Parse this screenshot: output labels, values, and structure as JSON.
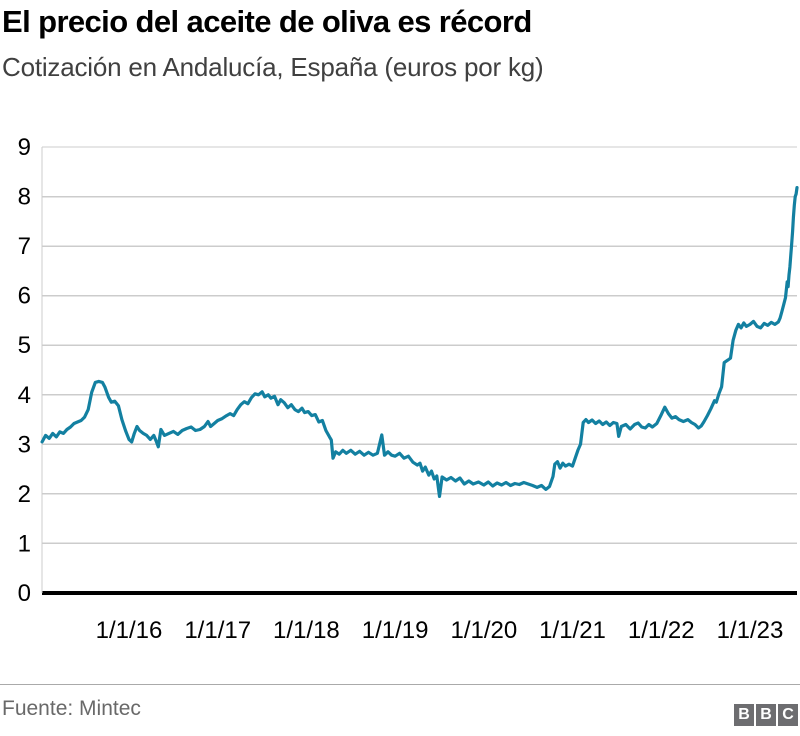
{
  "header": {
    "title": "El precio del aceite de oliva es récord",
    "subtitle": "Cotización en Andalucía, España (euros por kg)"
  },
  "footer": {
    "source": "Fuente: Mintec",
    "logo_letters": [
      "B",
      "B",
      "C"
    ]
  },
  "colors": {
    "line": "#1380A1",
    "grid": "#cccccc",
    "axis": "#000000",
    "tick_text": "#000000",
    "subtitle_text": "#404040",
    "source_text": "#696969",
    "logo_bg": "#6d6d70"
  },
  "chart_data": {
    "type": "line",
    "title": "El precio del aceite de oliva es récord",
    "subtitle": "Cotización en Andalucía, España (euros por kg)",
    "unit": "euros por kg",
    "grid": true,
    "legend_position": "none",
    "y_axis": {
      "min": 0,
      "max": 9,
      "ticks": [
        0,
        1,
        2,
        3,
        4,
        5,
        6,
        7,
        8,
        9
      ]
    },
    "x_axis": {
      "tick_years": [
        2016,
        2017,
        2018,
        2019,
        2020,
        2021,
        2022,
        2023
      ],
      "tick_labels": [
        "1/1/16",
        "1/1/17",
        "1/1/18",
        "1/1/19",
        "1/1/20",
        "1/1/21",
        "1/1/22",
        "1/1/23"
      ],
      "range_years": [
        2015.02,
        2023.53
      ]
    },
    "series": [
      {
        "name": "Precio del aceite de oliva (euros por kg)",
        "color": "#1380A1",
        "points": [
          [
            2015.02,
            3.05
          ],
          [
            2015.06,
            3.18
          ],
          [
            2015.1,
            3.12
          ],
          [
            2015.14,
            3.22
          ],
          [
            2015.18,
            3.15
          ],
          [
            2015.22,
            3.25
          ],
          [
            2015.26,
            3.22
          ],
          [
            2015.3,
            3.3
          ],
          [
            2015.34,
            3.35
          ],
          [
            2015.38,
            3.42
          ],
          [
            2015.42,
            3.45
          ],
          [
            2015.46,
            3.48
          ],
          [
            2015.5,
            3.55
          ],
          [
            2015.54,
            3.7
          ],
          [
            2015.58,
            4.05
          ],
          [
            2015.62,
            4.25
          ],
          [
            2015.66,
            4.27
          ],
          [
            2015.7,
            4.25
          ],
          [
            2015.73,
            4.15
          ],
          [
            2015.77,
            3.95
          ],
          [
            2015.8,
            3.85
          ],
          [
            2015.84,
            3.87
          ],
          [
            2015.88,
            3.78
          ],
          [
            2015.92,
            3.5
          ],
          [
            2015.96,
            3.28
          ],
          [
            2016.0,
            3.1
          ],
          [
            2016.03,
            3.05
          ],
          [
            2016.06,
            3.22
          ],
          [
            2016.09,
            3.36
          ],
          [
            2016.12,
            3.28
          ],
          [
            2016.16,
            3.22
          ],
          [
            2016.2,
            3.18
          ],
          [
            2016.24,
            3.1
          ],
          [
            2016.28,
            3.18
          ],
          [
            2016.31,
            3.05
          ],
          [
            2016.33,
            2.95
          ],
          [
            2016.36,
            3.3
          ],
          [
            2016.4,
            3.18
          ],
          [
            2016.45,
            3.22
          ],
          [
            2016.5,
            3.26
          ],
          [
            2016.55,
            3.2
          ],
          [
            2016.6,
            3.28
          ],
          [
            2016.65,
            3.32
          ],
          [
            2016.7,
            3.35
          ],
          [
            2016.75,
            3.28
          ],
          [
            2016.8,
            3.3
          ],
          [
            2016.85,
            3.36
          ],
          [
            2016.89,
            3.46
          ],
          [
            2016.92,
            3.36
          ],
          [
            2016.96,
            3.42
          ],
          [
            2017.0,
            3.48
          ],
          [
            2017.05,
            3.52
          ],
          [
            2017.1,
            3.58
          ],
          [
            2017.14,
            3.62
          ],
          [
            2017.18,
            3.58
          ],
          [
            2017.22,
            3.7
          ],
          [
            2017.26,
            3.8
          ],
          [
            2017.3,
            3.86
          ],
          [
            2017.34,
            3.82
          ],
          [
            2017.38,
            3.94
          ],
          [
            2017.42,
            4.02
          ],
          [
            2017.46,
            4.0
          ],
          [
            2017.5,
            4.06
          ],
          [
            2017.53,
            3.96
          ],
          [
            2017.57,
            4.0
          ],
          [
            2017.6,
            3.93
          ],
          [
            2017.64,
            3.97
          ],
          [
            2017.68,
            3.8
          ],
          [
            2017.71,
            3.9
          ],
          [
            2017.75,
            3.84
          ],
          [
            2017.79,
            3.74
          ],
          [
            2017.83,
            3.8
          ],
          [
            2017.87,
            3.7
          ],
          [
            2017.91,
            3.66
          ],
          [
            2017.95,
            3.73
          ],
          [
            2017.98,
            3.64
          ],
          [
            2018.02,
            3.66
          ],
          [
            2018.06,
            3.58
          ],
          [
            2018.1,
            3.6
          ],
          [
            2018.14,
            3.45
          ],
          [
            2018.18,
            3.48
          ],
          [
            2018.22,
            3.28
          ],
          [
            2018.26,
            3.15
          ],
          [
            2018.28,
            3.09
          ],
          [
            2018.3,
            2.72
          ],
          [
            2018.33,
            2.85
          ],
          [
            2018.37,
            2.8
          ],
          [
            2018.41,
            2.88
          ],
          [
            2018.45,
            2.82
          ],
          [
            2018.5,
            2.88
          ],
          [
            2018.55,
            2.8
          ],
          [
            2018.6,
            2.86
          ],
          [
            2018.65,
            2.78
          ],
          [
            2018.7,
            2.84
          ],
          [
            2018.75,
            2.78
          ],
          [
            2018.8,
            2.82
          ],
          [
            2018.85,
            3.19
          ],
          [
            2018.88,
            2.78
          ],
          [
            2018.92,
            2.85
          ],
          [
            2018.96,
            2.78
          ],
          [
            2019.0,
            2.76
          ],
          [
            2019.05,
            2.82
          ],
          [
            2019.1,
            2.72
          ],
          [
            2019.15,
            2.76
          ],
          [
            2019.2,
            2.64
          ],
          [
            2019.25,
            2.58
          ],
          [
            2019.28,
            2.62
          ],
          [
            2019.31,
            2.46
          ],
          [
            2019.34,
            2.54
          ],
          [
            2019.38,
            2.38
          ],
          [
            2019.41,
            2.46
          ],
          [
            2019.44,
            2.3
          ],
          [
            2019.47,
            2.36
          ],
          [
            2019.5,
            1.95
          ],
          [
            2019.53,
            2.34
          ],
          [
            2019.58,
            2.28
          ],
          [
            2019.63,
            2.33
          ],
          [
            2019.68,
            2.26
          ],
          [
            2019.73,
            2.32
          ],
          [
            2019.78,
            2.2
          ],
          [
            2019.83,
            2.26
          ],
          [
            2019.88,
            2.2
          ],
          [
            2019.94,
            2.24
          ],
          [
            2020.0,
            2.18
          ],
          [
            2020.05,
            2.24
          ],
          [
            2020.1,
            2.16
          ],
          [
            2020.15,
            2.22
          ],
          [
            2020.2,
            2.18
          ],
          [
            2020.25,
            2.23
          ],
          [
            2020.3,
            2.17
          ],
          [
            2020.35,
            2.21
          ],
          [
            2020.4,
            2.19
          ],
          [
            2020.45,
            2.23
          ],
          [
            2020.5,
            2.2
          ],
          [
            2020.55,
            2.17
          ],
          [
            2020.6,
            2.13
          ],
          [
            2020.65,
            2.17
          ],
          [
            2020.7,
            2.09
          ],
          [
            2020.74,
            2.15
          ],
          [
            2020.78,
            2.35
          ],
          [
            2020.8,
            2.6
          ],
          [
            2020.83,
            2.65
          ],
          [
            2020.86,
            2.52
          ],
          [
            2020.89,
            2.62
          ],
          [
            2020.92,
            2.56
          ],
          [
            2020.96,
            2.6
          ],
          [
            2021.0,
            2.56
          ],
          [
            2021.03,
            2.72
          ],
          [
            2021.06,
            2.88
          ],
          [
            2021.09,
            3.0
          ],
          [
            2021.12,
            3.44
          ],
          [
            2021.15,
            3.5
          ],
          [
            2021.18,
            3.44
          ],
          [
            2021.22,
            3.49
          ],
          [
            2021.26,
            3.42
          ],
          [
            2021.3,
            3.47
          ],
          [
            2021.34,
            3.4
          ],
          [
            2021.38,
            3.45
          ],
          [
            2021.42,
            3.38
          ],
          [
            2021.46,
            3.44
          ],
          [
            2021.5,
            3.42
          ],
          [
            2021.52,
            3.16
          ],
          [
            2021.55,
            3.36
          ],
          [
            2021.6,
            3.4
          ],
          [
            2021.65,
            3.31
          ],
          [
            2021.7,
            3.4
          ],
          [
            2021.74,
            3.43
          ],
          [
            2021.78,
            3.35
          ],
          [
            2021.82,
            3.33
          ],
          [
            2021.86,
            3.4
          ],
          [
            2021.9,
            3.35
          ],
          [
            2021.95,
            3.42
          ],
          [
            2022.0,
            3.6
          ],
          [
            2022.04,
            3.75
          ],
          [
            2022.08,
            3.62
          ],
          [
            2022.12,
            3.53
          ],
          [
            2022.16,
            3.56
          ],
          [
            2022.2,
            3.5
          ],
          [
            2022.25,
            3.46
          ],
          [
            2022.3,
            3.5
          ],
          [
            2022.34,
            3.44
          ],
          [
            2022.38,
            3.4
          ],
          [
            2022.42,
            3.33
          ],
          [
            2022.45,
            3.37
          ],
          [
            2022.48,
            3.45
          ],
          [
            2022.52,
            3.58
          ],
          [
            2022.56,
            3.72
          ],
          [
            2022.6,
            3.88
          ],
          [
            2022.62,
            3.85
          ],
          [
            2022.65,
            4.02
          ],
          [
            2022.68,
            4.16
          ],
          [
            2022.71,
            4.65
          ],
          [
            2022.75,
            4.7
          ],
          [
            2022.78,
            4.74
          ],
          [
            2022.81,
            5.1
          ],
          [
            2022.84,
            5.3
          ],
          [
            2022.87,
            5.42
          ],
          [
            2022.9,
            5.35
          ],
          [
            2022.93,
            5.45
          ],
          [
            2022.96,
            5.38
          ],
          [
            2023.0,
            5.42
          ],
          [
            2023.04,
            5.48
          ],
          [
            2023.08,
            5.38
          ],
          [
            2023.12,
            5.35
          ],
          [
            2023.16,
            5.44
          ],
          [
            2023.2,
            5.4
          ],
          [
            2023.24,
            5.46
          ],
          [
            2023.28,
            5.42
          ],
          [
            2023.32,
            5.47
          ],
          [
            2023.34,
            5.55
          ],
          [
            2023.36,
            5.68
          ],
          [
            2023.38,
            5.82
          ],
          [
            2023.4,
            5.96
          ],
          [
            2023.42,
            6.28
          ],
          [
            2023.43,
            6.18
          ],
          [
            2023.44,
            6.42
          ],
          [
            2023.45,
            6.58
          ],
          [
            2023.46,
            6.82
          ],
          [
            2023.47,
            7.05
          ],
          [
            2023.48,
            7.3
          ],
          [
            2023.49,
            7.58
          ],
          [
            2023.5,
            7.82
          ],
          [
            2023.51,
            8.0
          ],
          [
            2023.52,
            8.05
          ],
          [
            2023.53,
            8.18
          ]
        ]
      }
    ]
  }
}
